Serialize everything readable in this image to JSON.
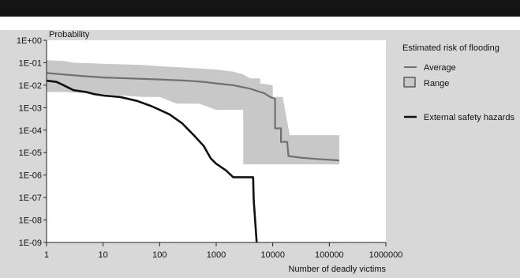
{
  "chart_data": {
    "type": "line",
    "title": "",
    "xlabel": "Number of deadly victims",
    "ylabel": "Probability",
    "xscale": "log",
    "yscale": "log",
    "xlim": [
      1,
      1000000
    ],
    "ylim": [
      1e-09,
      1
    ],
    "grid": false,
    "legend_position": "right",
    "legend_title": "Estimated risk of flooding",
    "x_ticks": [
      1,
      10,
      100,
      1000,
      10000,
      100000,
      1000000
    ],
    "x_tick_labels": [
      "1",
      "10",
      "100",
      "1000",
      "10000",
      "100000",
      "1000000"
    ],
    "y_ticks": [
      1,
      0.1,
      0.01,
      0.001,
      0.0001,
      1e-05,
      1e-06,
      1e-07,
      1e-08,
      1e-09
    ],
    "y_tick_labels": [
      "1E+00",
      "1E-01",
      "1E-02",
      "1E-03",
      "1E-04",
      "1E-05",
      "1E-06",
      "1E-07",
      "1E-08",
      "1E-09"
    ],
    "series": [
      {
        "name": "Average",
        "kind": "line",
        "color": "#707070",
        "points": [
          [
            1,
            0.035
          ],
          [
            2,
            0.03
          ],
          [
            5,
            0.025
          ],
          [
            10,
            0.022
          ],
          [
            30,
            0.02
          ],
          [
            100,
            0.018
          ],
          [
            300,
            0.016
          ],
          [
            600,
            0.014
          ],
          [
            1000,
            0.012
          ],
          [
            2000,
            0.01
          ],
          [
            4000,
            0.007
          ],
          [
            6000,
            0.005
          ],
          [
            7000,
            0.0045
          ],
          [
            9000,
            0.003
          ],
          [
            11000,
            0.0025
          ],
          [
            11000,
            0.00012
          ],
          [
            14000,
            0.00012
          ],
          [
            14000,
            3e-05
          ],
          [
            18000,
            3e-05
          ],
          [
            19000,
            7e-06
          ],
          [
            30000,
            6e-06
          ],
          [
            60000,
            5.2e-06
          ],
          [
            150000,
            4.5e-06
          ]
        ]
      },
      {
        "name": "Range",
        "kind": "band",
        "color": "#c8c8c8",
        "upper": [
          [
            1,
            0.13
          ],
          [
            2,
            0.12
          ],
          [
            3,
            0.1
          ],
          [
            10,
            0.09
          ],
          [
            50,
            0.08
          ],
          [
            100,
            0.07
          ],
          [
            300,
            0.06
          ],
          [
            1000,
            0.05
          ],
          [
            2000,
            0.04
          ],
          [
            3000,
            0.03
          ],
          [
            4000,
            0.02
          ],
          [
            6000,
            0.02
          ],
          [
            6000,
            0.012
          ],
          [
            10000,
            0.01
          ],
          [
            10000,
            0.003
          ],
          [
            15000,
            0.003
          ],
          [
            20000,
            6e-05
          ],
          [
            150000,
            6e-05
          ]
        ],
        "lower": [
          [
            1,
            0.005
          ],
          [
            2,
            0.005
          ],
          [
            10,
            0.004
          ],
          [
            50,
            0.003
          ],
          [
            100,
            0.003
          ],
          [
            200,
            0.0015
          ],
          [
            500,
            0.0015
          ],
          [
            1000,
            0.0008
          ],
          [
            3000,
            0.0008
          ],
          [
            3000,
            3e-06
          ],
          [
            7000,
            3e-06
          ],
          [
            12000,
            3e-06
          ],
          [
            150000,
            3e-06
          ]
        ]
      },
      {
        "name": "External safety hazards",
        "kind": "line",
        "color": "#111111",
        "points": [
          [
            1,
            0.016
          ],
          [
            1.5,
            0.014
          ],
          [
            2,
            0.01
          ],
          [
            3,
            0.006
          ],
          [
            5,
            0.005
          ],
          [
            7,
            0.004
          ],
          [
            10,
            0.0035
          ],
          [
            20,
            0.003
          ],
          [
            40,
            0.002
          ],
          [
            70,
            0.0012
          ],
          [
            100,
            0.0008
          ],
          [
            150,
            0.0005
          ],
          [
            250,
            0.0002
          ],
          [
            400,
            6e-05
          ],
          [
            600,
            2e-05
          ],
          [
            800,
            5.5e-06
          ],
          [
            1000,
            3.2e-06
          ],
          [
            1500,
            1.6e-06
          ],
          [
            2000,
            8e-07
          ],
          [
            3000,
            8e-07
          ],
          [
            4500,
            8e-07
          ],
          [
            4600,
            8e-08
          ],
          [
            5200,
            1e-09
          ]
        ]
      }
    ]
  }
}
